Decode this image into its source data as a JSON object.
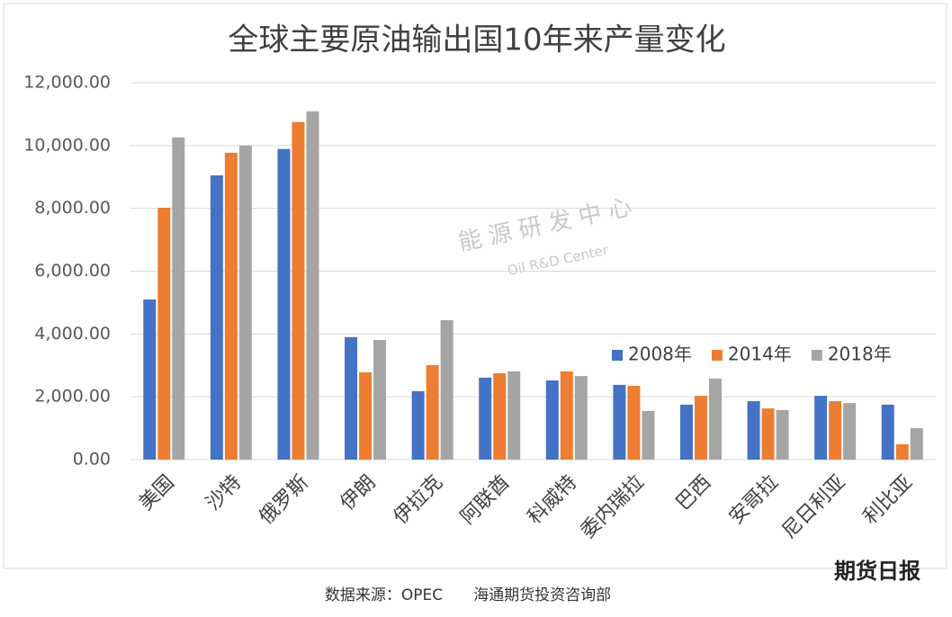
{
  "chart_data": {
    "type": "bar",
    "title": "全球主要原油输出国10年来产量变化",
    "categories": [
      "美国",
      "沙特",
      "俄罗斯",
      "伊朗",
      "伊拉克",
      "阿联酋",
      "科威特",
      "委内瑞拉",
      "巴西",
      "安哥拉",
      "尼日利亚",
      "利比亚"
    ],
    "series": [
      {
        "name": "2008年",
        "color": "#4472c4",
        "values": [
          5100,
          9050,
          9890,
          3900,
          2180,
          2610,
          2520,
          2380,
          1750,
          1860,
          2030,
          1750
        ]
      },
      {
        "name": "2014年",
        "color": "#ed7d31",
        "values": [
          8020,
          9770,
          10750,
          2780,
          3010,
          2750,
          2810,
          2350,
          2030,
          1630,
          1860,
          490
        ]
      },
      {
        "name": "2018年",
        "color": "#a5a5a5",
        "values": [
          10260,
          10000,
          11090,
          3810,
          4440,
          2810,
          2660,
          1550,
          2580,
          1580,
          1800,
          1000
        ]
      }
    ],
    "ylim": [
      0,
      12000
    ],
    "yticks": [
      {
        "value": 0,
        "label": "0.00"
      },
      {
        "value": 2000,
        "label": "2,000.00"
      },
      {
        "value": 4000,
        "label": "4,000.00"
      },
      {
        "value": 6000,
        "label": "6,000.00"
      },
      {
        "value": 8000,
        "label": "8,000.00"
      },
      {
        "value": 10000,
        "label": "10,000.00"
      },
      {
        "value": 12000,
        "label": "12,000.00"
      }
    ],
    "grid": true,
    "legend": "right",
    "source": "数据来源：OPEC　　海通期货投资咨询部",
    "watermark": "能源研发中心",
    "watermark_sub": "Oil R&D Center",
    "logo": "期货日报"
  }
}
